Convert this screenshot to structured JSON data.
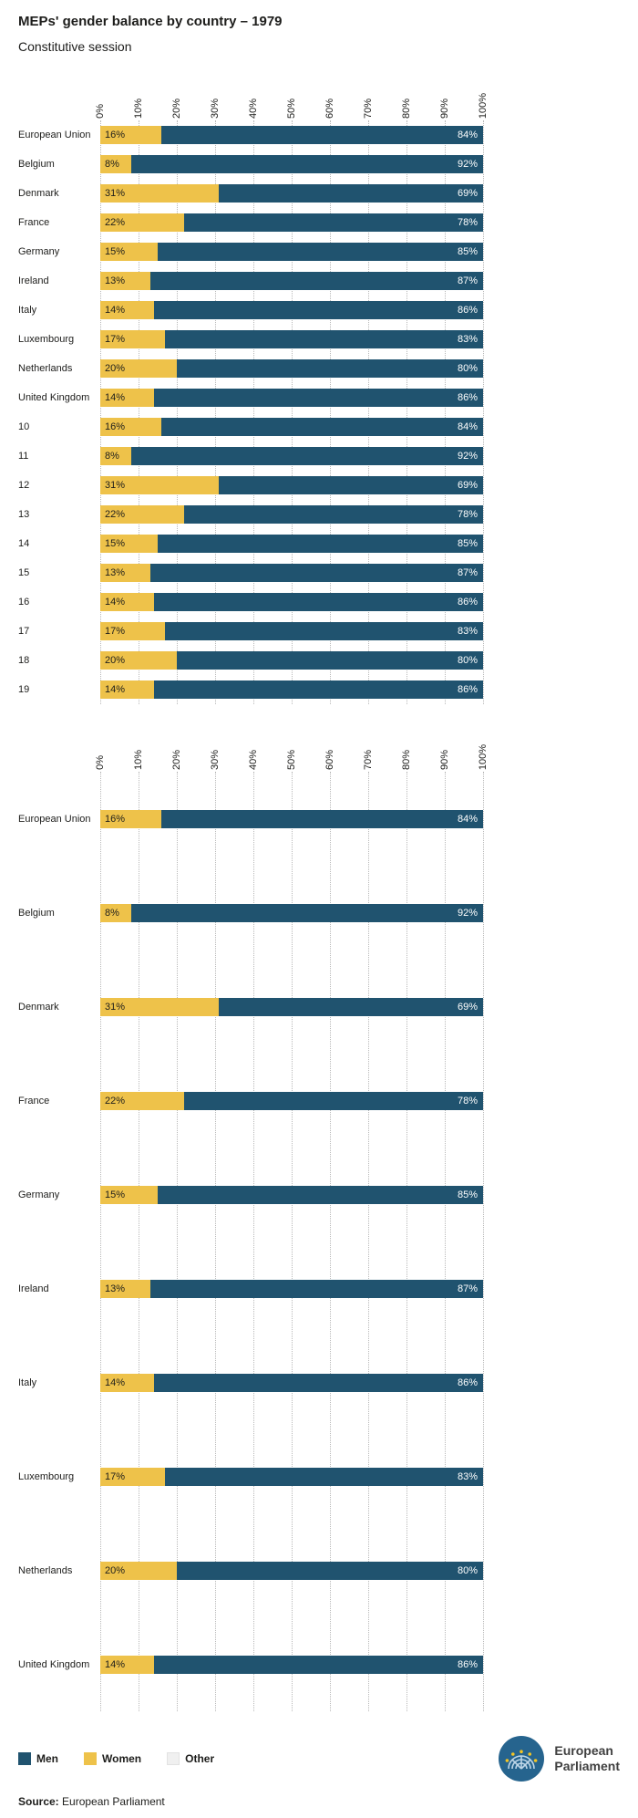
{
  "header": {
    "title": "MEPs' gender balance by country – 1979",
    "subtitle": "Constitutive session"
  },
  "colors": {
    "men": "#20536f",
    "women": "#eec24a",
    "other": "#f0f0f0"
  },
  "chart_data": [
    {
      "type": "bar",
      "orientation": "horizontal",
      "stacked": true,
      "xlim": [
        0,
        100
      ],
      "grid": true,
      "x_ticks": [
        "0%",
        "10%",
        "20%",
        "30%",
        "40%",
        "50%",
        "60%",
        "70%",
        "80%",
        "90%",
        "100%"
      ],
      "categories": [
        "European Union",
        "Belgium",
        "Denmark",
        "France",
        "Germany",
        "Ireland",
        "Italy",
        "Luxembourg",
        "Netherlands",
        "United Kingdom",
        "10",
        "11",
        "12",
        "13",
        "14",
        "15",
        "16",
        "17",
        "18",
        "19"
      ],
      "series": [
        {
          "name": "Women",
          "values": [
            16,
            8,
            31,
            22,
            15,
            13,
            14,
            17,
            20,
            14,
            16,
            8,
            31,
            22,
            15,
            13,
            14,
            17,
            20,
            14
          ]
        },
        {
          "name": "Men",
          "values": [
            84,
            92,
            69,
            78,
            85,
            87,
            86,
            83,
            80,
            86,
            84,
            92,
            69,
            78,
            85,
            87,
            86,
            83,
            80,
            86
          ]
        }
      ]
    },
    {
      "type": "bar",
      "orientation": "horizontal",
      "stacked": true,
      "xlim": [
        0,
        100
      ],
      "grid": true,
      "x_ticks": [
        "0%",
        "10%",
        "20%",
        "30%",
        "40%",
        "50%",
        "60%",
        "70%",
        "80%",
        "90%",
        "100%"
      ],
      "categories": [
        "European Union",
        "Belgium",
        "Denmark",
        "France",
        "Germany",
        "Ireland",
        "Italy",
        "Luxembourg",
        "Netherlands",
        "United Kingdom"
      ],
      "series": [
        {
          "name": "Women",
          "values": [
            16,
            8,
            31,
            22,
            15,
            13,
            14,
            17,
            20,
            14
          ]
        },
        {
          "name": "Men",
          "values": [
            84,
            92,
            69,
            78,
            85,
            87,
            86,
            83,
            80,
            86
          ]
        }
      ]
    }
  ],
  "legend": [
    {
      "label": "Men",
      "key": "men"
    },
    {
      "label": "Women",
      "key": "women"
    },
    {
      "label": "Other",
      "key": "other"
    }
  ],
  "logo": {
    "line1": "European",
    "line2": "Parliament"
  },
  "source": {
    "label": "Source:",
    "text": " European Parliament"
  }
}
